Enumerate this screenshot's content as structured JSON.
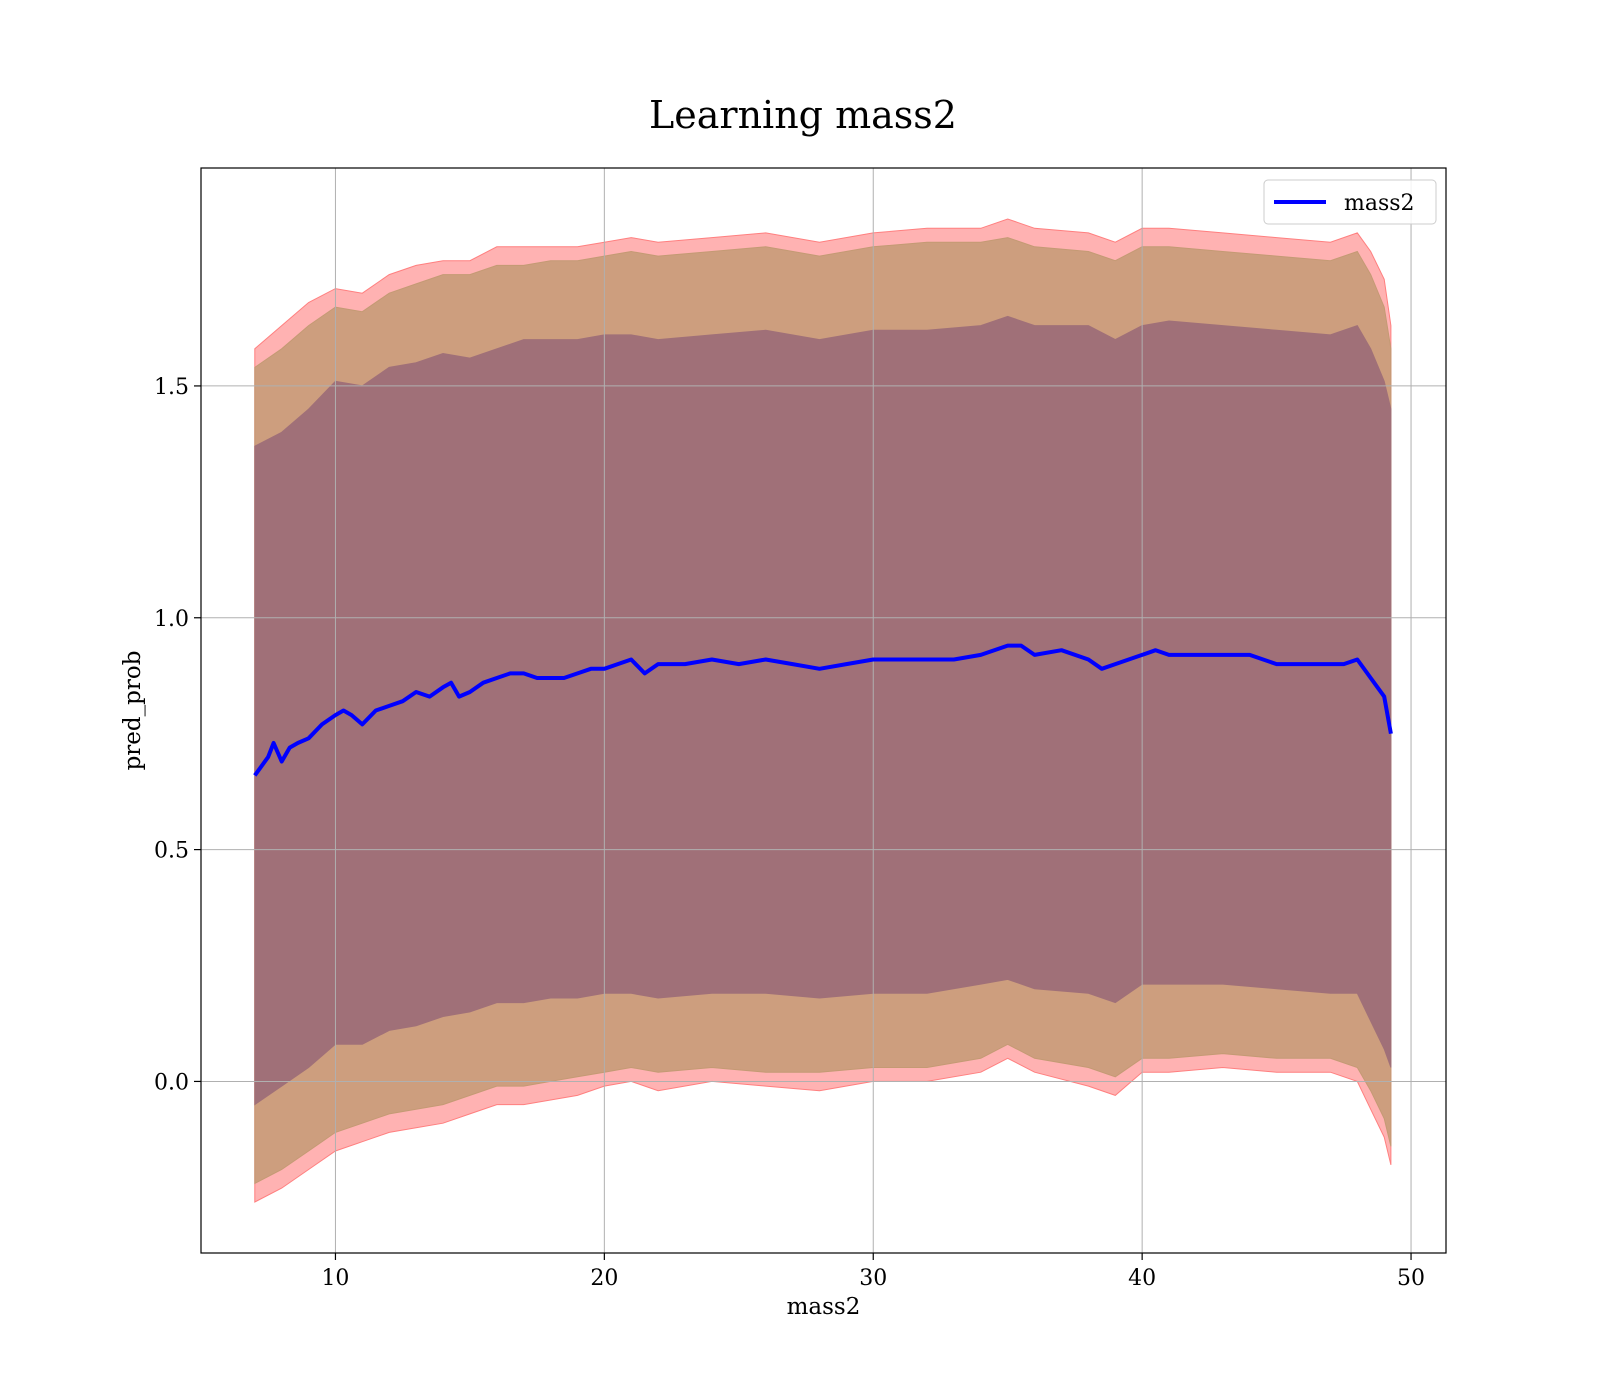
{
  "chart_data": {
    "type": "line",
    "title": "Learning mass2",
    "xlabel": "mass2",
    "ylabel": "pred_prob",
    "xlim": [
      5,
      51.3
    ],
    "ylim": [
      -0.37,
      1.97
    ],
    "xticks": [
      10,
      20,
      30,
      40,
      50
    ],
    "yticks": [
      0.0,
      0.5,
      1.0,
      1.5
    ],
    "grid": true,
    "legend_position": "top-right",
    "series": [
      {
        "name": "mass2",
        "color": "#0000ff",
        "x": [
          7.0,
          7.5,
          7.7,
          8.0,
          8.3,
          8.6,
          9.0,
          9.5,
          10.0,
          10.3,
          10.6,
          11.0,
          11.5,
          12.0,
          12.5,
          13.0,
          13.5,
          14.0,
          14.3,
          14.6,
          15.0,
          15.5,
          16.0,
          16.5,
          17.0,
          17.5,
          18.0,
          18.5,
          19.0,
          19.5,
          20.0,
          20.5,
          21.0,
          21.5,
          22.0,
          23.0,
          24.0,
          25.0,
          26.0,
          27.0,
          28.0,
          29.0,
          30.0,
          31.0,
          32.0,
          33.0,
          34.0,
          35.0,
          35.5,
          36.0,
          37.0,
          38.0,
          38.5,
          39.0,
          40.0,
          40.5,
          41.0,
          42.0,
          43.0,
          44.0,
          45.0,
          46.0,
          47.0,
          47.5,
          48.0,
          48.5,
          49.0,
          49.25
        ],
        "y": [
          0.66,
          0.7,
          0.73,
          0.69,
          0.72,
          0.73,
          0.74,
          0.77,
          0.79,
          0.8,
          0.79,
          0.77,
          0.8,
          0.81,
          0.82,
          0.84,
          0.83,
          0.85,
          0.86,
          0.83,
          0.84,
          0.86,
          0.87,
          0.88,
          0.88,
          0.87,
          0.87,
          0.87,
          0.88,
          0.89,
          0.89,
          0.9,
          0.91,
          0.88,
          0.9,
          0.9,
          0.91,
          0.9,
          0.91,
          0.9,
          0.89,
          0.9,
          0.91,
          0.91,
          0.91,
          0.91,
          0.92,
          0.94,
          0.94,
          0.92,
          0.93,
          0.91,
          0.89,
          0.9,
          0.92,
          0.93,
          0.92,
          0.92,
          0.92,
          0.92,
          0.9,
          0.9,
          0.9,
          0.9,
          0.91,
          0.87,
          0.83,
          0.75
        ]
      }
    ],
    "bands": [
      {
        "description": "outer band (light red)",
        "color": "#ff7f7f",
        "opacity": 0.6,
        "x": [
          7.0,
          8.0,
          9.0,
          10.0,
          11.0,
          12.0,
          13.0,
          14.0,
          15.0,
          16.0,
          17.0,
          18.0,
          19.0,
          20.0,
          21.0,
          22.0,
          24.0,
          26.0,
          28.0,
          30.0,
          32.0,
          34.0,
          35.0,
          36.0,
          38.0,
          39.0,
          40.0,
          41.0,
          43.0,
          45.0,
          47.0,
          48.0,
          48.5,
          49.0,
          49.25
        ],
        "upper": [
          1.58,
          1.63,
          1.68,
          1.71,
          1.7,
          1.74,
          1.76,
          1.77,
          1.77,
          1.8,
          1.8,
          1.8,
          1.8,
          1.81,
          1.82,
          1.81,
          1.82,
          1.83,
          1.81,
          1.83,
          1.84,
          1.84,
          1.86,
          1.84,
          1.83,
          1.81,
          1.84,
          1.84,
          1.83,
          1.82,
          1.81,
          1.83,
          1.79,
          1.73,
          1.63
        ],
        "lower": [
          -0.26,
          -0.23,
          -0.19,
          -0.15,
          -0.13,
          -0.11,
          -0.1,
          -0.09,
          -0.07,
          -0.05,
          -0.05,
          -0.04,
          -0.03,
          -0.01,
          0.0,
          -0.02,
          0.0,
          -0.01,
          -0.02,
          0.0,
          0.0,
          0.02,
          0.05,
          0.02,
          -0.01,
          -0.03,
          0.02,
          0.02,
          0.03,
          0.02,
          0.02,
          0.0,
          -0.06,
          -0.12,
          -0.18
        ]
      },
      {
        "description": "middle band (tan)",
        "color": "#c49a74",
        "opacity": 0.85,
        "x": [
          7.0,
          8.0,
          9.0,
          10.0,
          11.0,
          12.0,
          13.0,
          14.0,
          15.0,
          16.0,
          17.0,
          18.0,
          19.0,
          20.0,
          21.0,
          22.0,
          24.0,
          26.0,
          28.0,
          30.0,
          32.0,
          34.0,
          35.0,
          36.0,
          38.0,
          39.0,
          40.0,
          41.0,
          43.0,
          45.0,
          47.0,
          48.0,
          48.5,
          49.0,
          49.25
        ],
        "upper": [
          1.54,
          1.58,
          1.63,
          1.67,
          1.66,
          1.7,
          1.72,
          1.74,
          1.74,
          1.76,
          1.76,
          1.77,
          1.77,
          1.78,
          1.79,
          1.78,
          1.79,
          1.8,
          1.78,
          1.8,
          1.81,
          1.81,
          1.82,
          1.8,
          1.79,
          1.77,
          1.8,
          1.8,
          1.79,
          1.78,
          1.77,
          1.79,
          1.74,
          1.67,
          1.58
        ],
        "lower": [
          -0.22,
          -0.19,
          -0.15,
          -0.11,
          -0.09,
          -0.07,
          -0.06,
          -0.05,
          -0.03,
          -0.01,
          -0.01,
          0.0,
          0.01,
          0.02,
          0.03,
          0.02,
          0.03,
          0.02,
          0.02,
          0.03,
          0.03,
          0.05,
          0.08,
          0.05,
          0.03,
          0.01,
          0.05,
          0.05,
          0.06,
          0.05,
          0.05,
          0.03,
          -0.02,
          -0.08,
          -0.14
        ]
      },
      {
        "description": "inner band (mauve)",
        "color": "#a07078",
        "opacity": 1.0,
        "x": [
          7.0,
          8.0,
          9.0,
          10.0,
          11.0,
          12.0,
          13.0,
          14.0,
          15.0,
          16.0,
          17.0,
          18.0,
          19.0,
          20.0,
          21.0,
          22.0,
          24.0,
          26.0,
          28.0,
          30.0,
          32.0,
          34.0,
          35.0,
          36.0,
          38.0,
          39.0,
          40.0,
          41.0,
          43.0,
          45.0,
          47.0,
          48.0,
          48.5,
          49.0,
          49.25
        ],
        "upper": [
          1.37,
          1.4,
          1.45,
          1.51,
          1.5,
          1.54,
          1.55,
          1.57,
          1.56,
          1.58,
          1.6,
          1.6,
          1.6,
          1.61,
          1.61,
          1.6,
          1.61,
          1.62,
          1.6,
          1.62,
          1.62,
          1.63,
          1.65,
          1.63,
          1.63,
          1.6,
          1.63,
          1.64,
          1.63,
          1.62,
          1.61,
          1.63,
          1.58,
          1.51,
          1.45
        ],
        "lower": [
          -0.05,
          -0.01,
          0.03,
          0.08,
          0.08,
          0.11,
          0.12,
          0.14,
          0.15,
          0.17,
          0.17,
          0.18,
          0.18,
          0.19,
          0.19,
          0.18,
          0.19,
          0.19,
          0.18,
          0.19,
          0.19,
          0.21,
          0.22,
          0.2,
          0.19,
          0.17,
          0.21,
          0.21,
          0.21,
          0.2,
          0.19,
          0.19,
          0.13,
          0.07,
          0.03
        ]
      }
    ]
  }
}
